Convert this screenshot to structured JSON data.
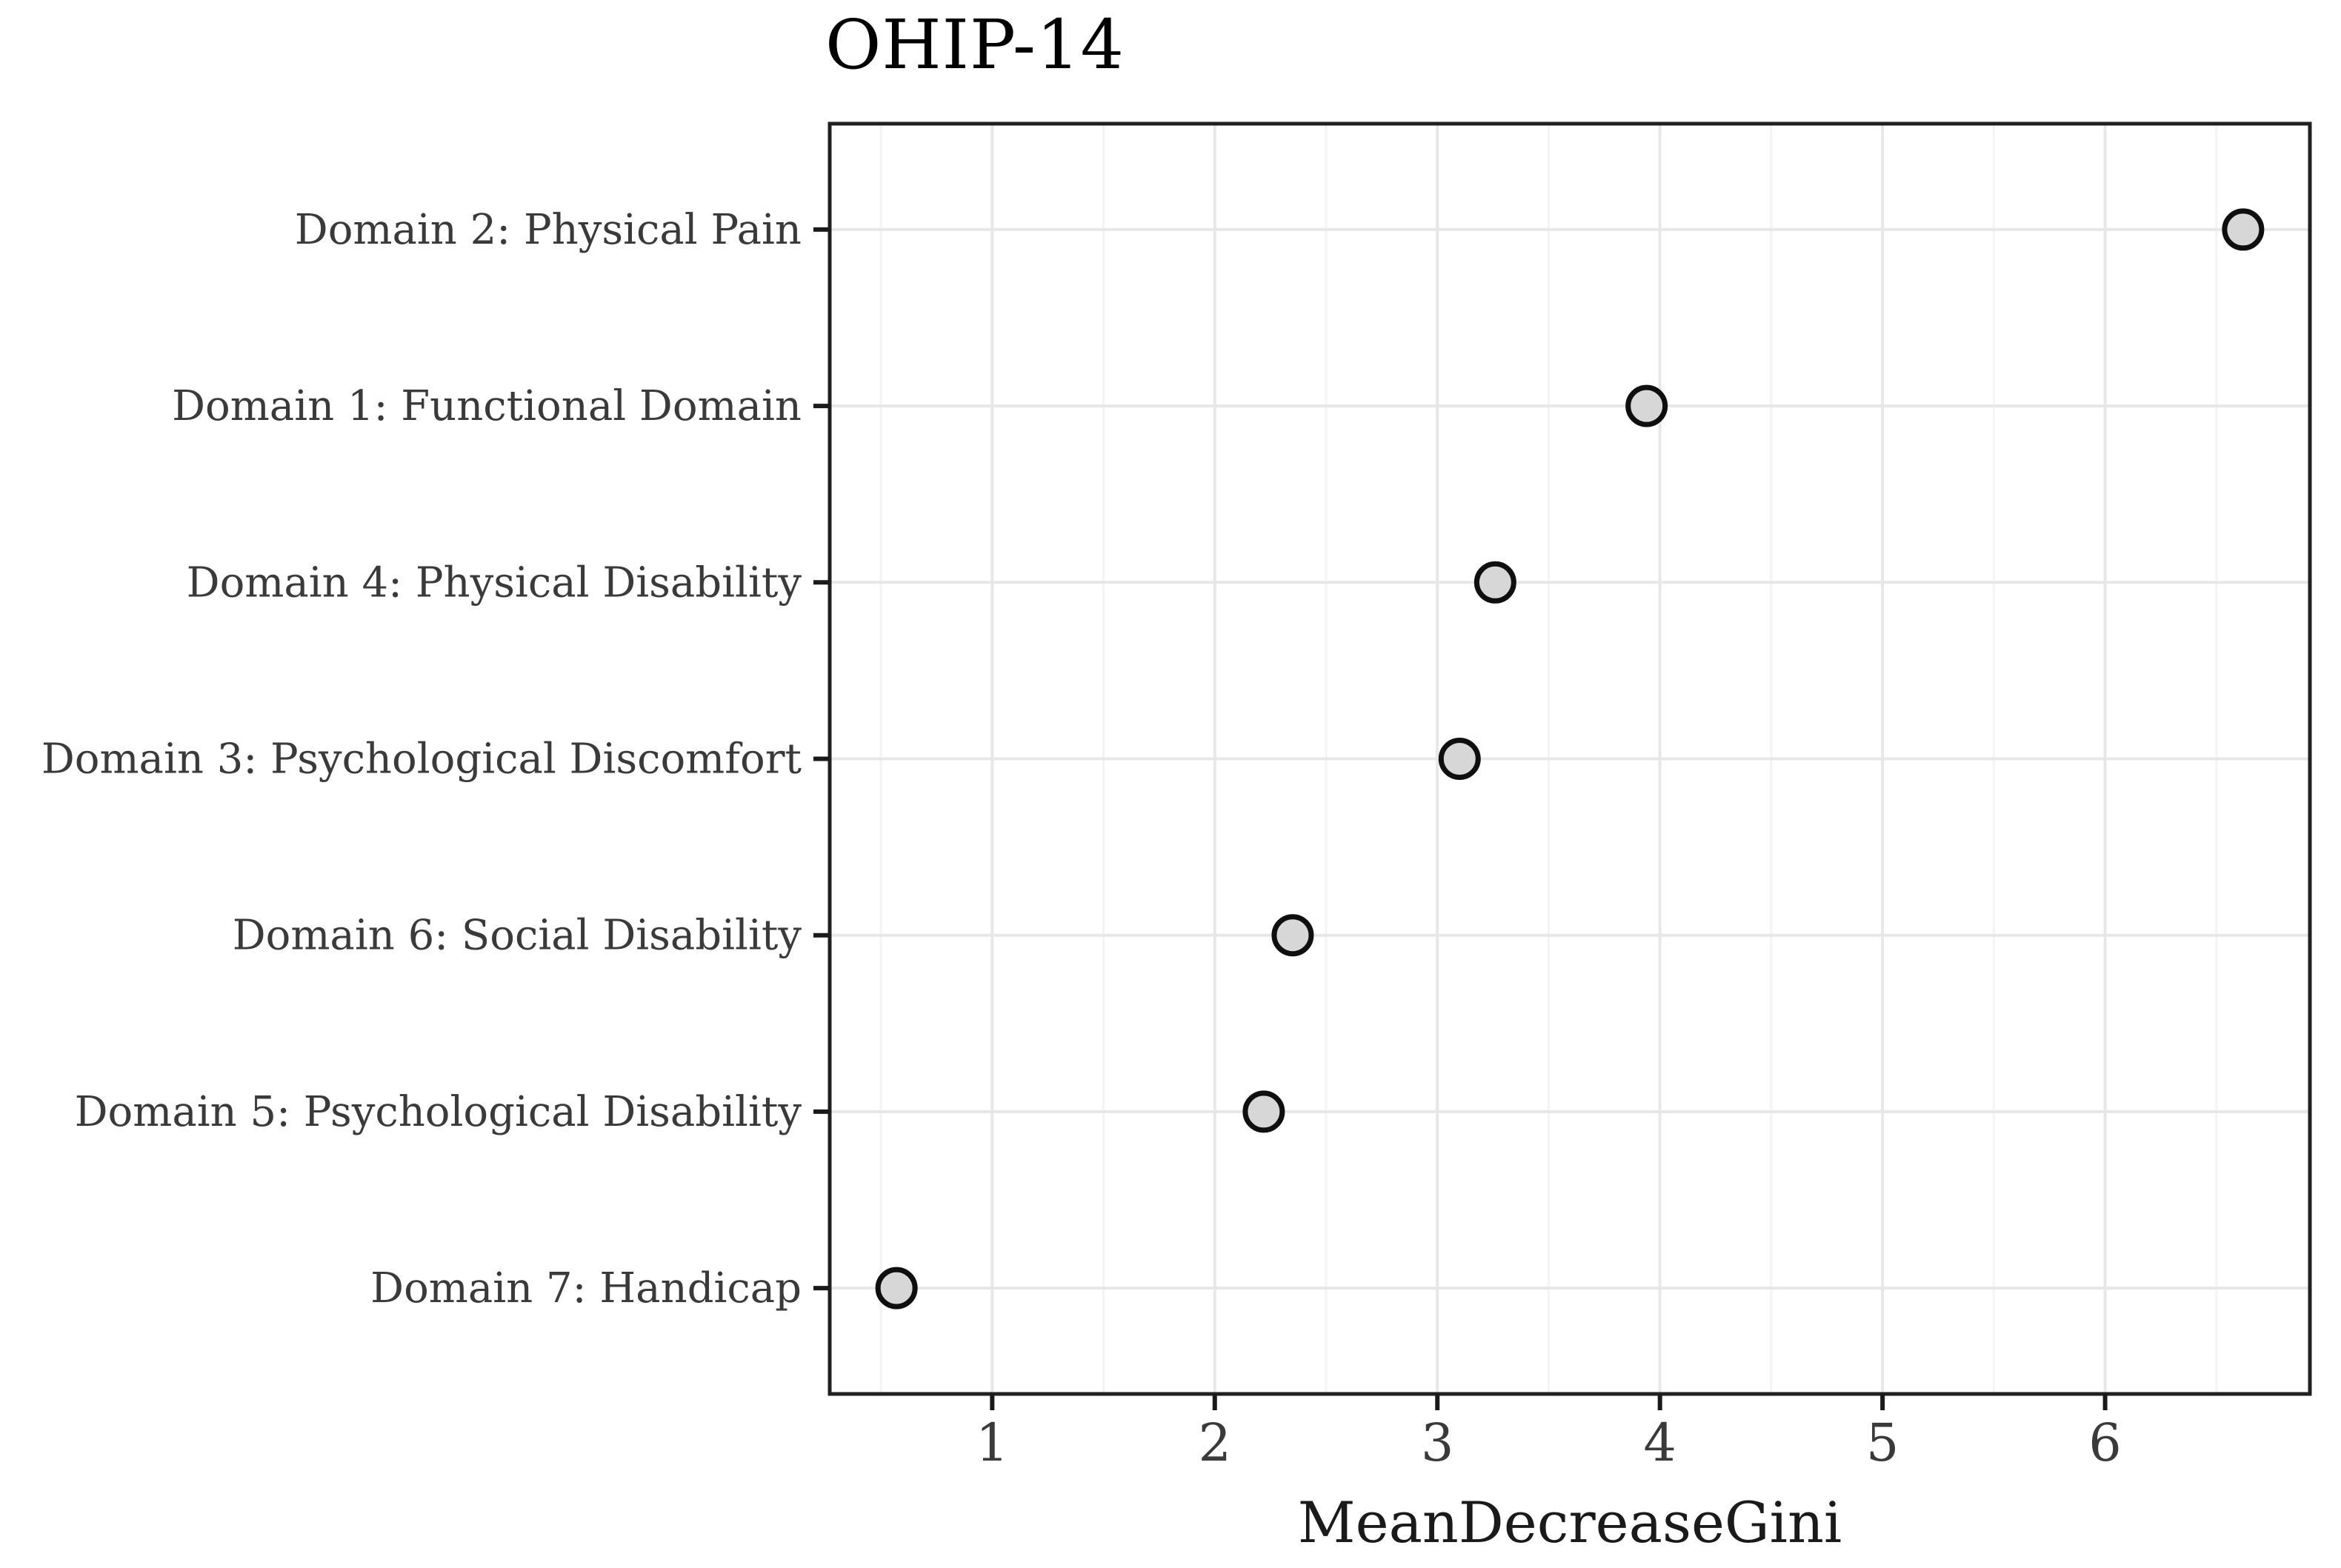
{
  "figure": {
    "title": "OHIP-14",
    "x_axis_label": "MeanDecreaseGini"
  },
  "chart_data": {
    "type": "scatter",
    "subtype": "horizontal-dot-importance-plot",
    "title": "OHIP-14",
    "xlabel": "MeanDecreaseGini",
    "ylabel": "",
    "categories": [
      "Domain 2: Physical Pain",
      "Domain 1: Functional Domain",
      "Domain 4: Physical Disability",
      "Domain 3: Psychological Discomfort",
      "Domain 6: Social Disability",
      "Domain 5: Psychological Disability",
      "Domain 7: Handicap"
    ],
    "values": [
      6.62,
      3.94,
      3.26,
      3.1,
      2.35,
      2.22,
      0.57
    ],
    "xlim": [
      0.27,
      6.92
    ],
    "x_major_ticks": [
      1,
      2,
      3,
      4,
      5,
      6
    ],
    "x_tick_labels": [
      "1",
      "2",
      "3",
      "4",
      "5",
      "6"
    ],
    "x_minor_gridlines": [
      0.5,
      1.5,
      2.5,
      3.5,
      4.5,
      5.5,
      6.5
    ],
    "grid": "vertical major+minor, horizontal major per category, no minor horizontal",
    "legend": "none",
    "point_style": {
      "radius_px": 25,
      "stroke_width_px": 7,
      "fill": "#d7d7d7",
      "stroke": "#0f0f0f"
    },
    "colors": {
      "background": "#ffffff",
      "panel_background": "#ffffff",
      "panel_border": "#202020",
      "grid_major": "#e7e7e7",
      "grid_minor": "#f4f4f4",
      "tick_mark": "#1a1a1a",
      "tick_label": "#3a3a3a",
      "category_label": "#3a3a3a",
      "title_color": "#000000"
    }
  }
}
